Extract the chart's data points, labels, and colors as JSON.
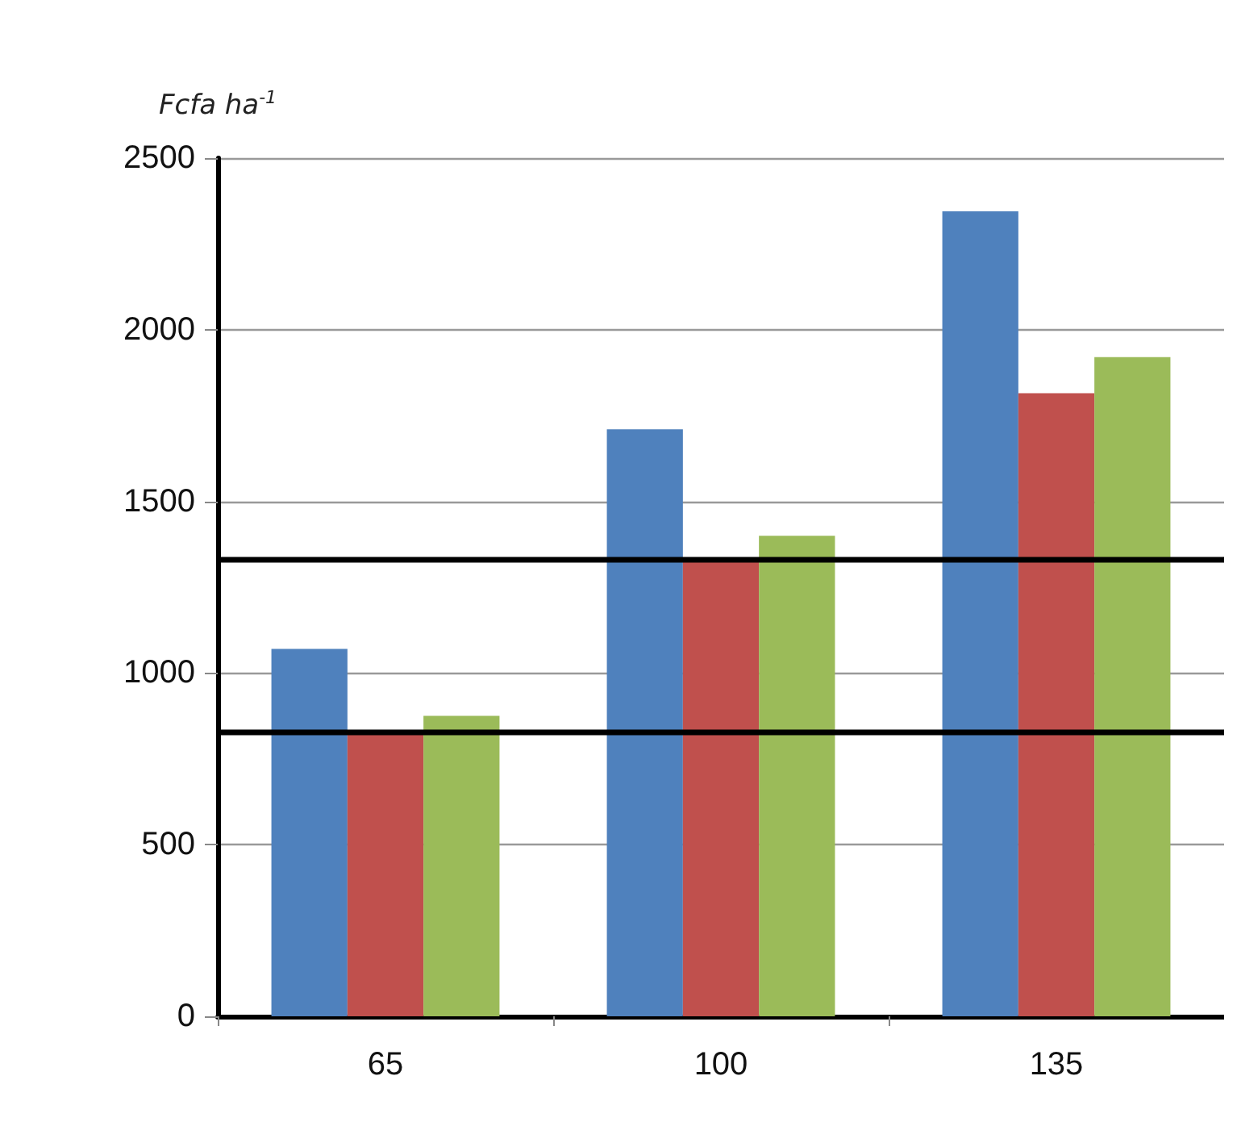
{
  "chart_data": {
    "type": "bar",
    "ylabel": "Fcfa ha$^{-1}$",
    "categories": [
      "65",
      "100",
      "135"
    ],
    "series": [
      {
        "color": "#4f81bd",
        "values": [
          1070,
          1710,
          2345
        ]
      },
      {
        "color": "#c0504d",
        "values": [
          830,
          1330,
          1815
        ]
      },
      {
        "color": "#9bbb59",
        "values": [
          875,
          1400,
          1920
        ]
      }
    ],
    "ylim": [
      0,
      2500
    ],
    "yticks": [
      0,
      500,
      1000,
      1500,
      2000,
      2500
    ],
    "grid": "y",
    "ref_lines": [
      {
        "axis": "y",
        "value": 1330,
        "color": "#000000",
        "line_style": "solid"
      },
      {
        "axis": "y",
        "value": 830,
        "color": "#000000",
        "line_style": "solid"
      }
    ]
  }
}
